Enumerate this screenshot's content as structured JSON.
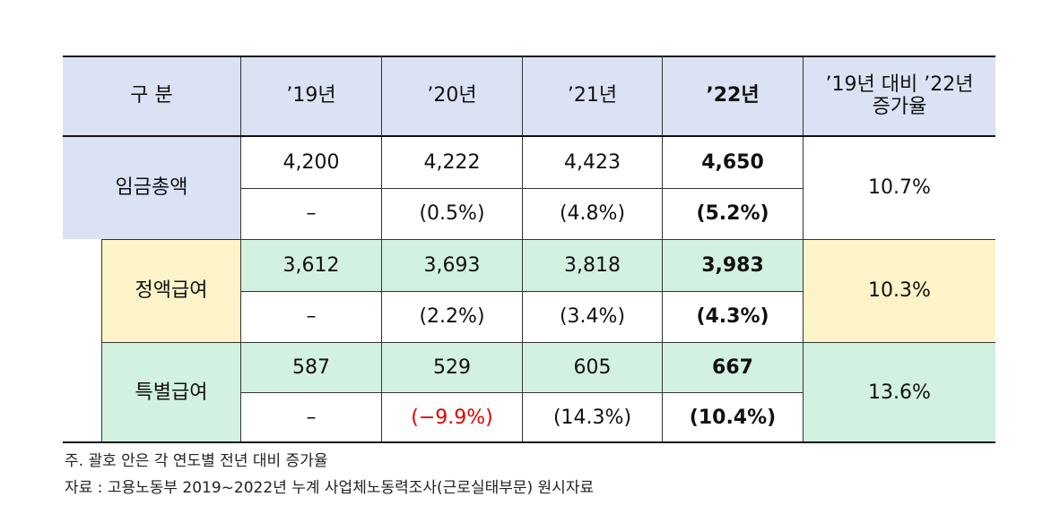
{
  "header": {
    "label": "구 분",
    "years": [
      "’19년",
      "’20년",
      "’21년",
      "’22년"
    ],
    "growth": [
      "’19년 대비 ’22년",
      "증가율"
    ]
  },
  "rows": [
    {
      "label": "임금총액",
      "amounts": [
        "4,200",
        "4,222",
        "4,423",
        "4,650"
      ],
      "rates": [
        "–",
        "(0.5%)",
        "(4.8%)",
        "(5.2%)"
      ],
      "growth": "10.7%"
    },
    {
      "label": "정액급여",
      "amounts": [
        "3,612",
        "3,693",
        "3,818",
        "3,983"
      ],
      "rates": [
        "–",
        "(2.2%)",
        "(3.4%)",
        "(4.3%)"
      ],
      "growth": "10.3%"
    },
    {
      "label": "특별급여",
      "amounts": [
        "587",
        "529",
        "605",
        "667"
      ],
      "rates": [
        "–",
        "(−9.9%)",
        "(14.3%)",
        "(10.4%)"
      ],
      "growth": "13.6%"
    }
  ],
  "notes": [
    "주. 괄호 안은 각 연도별 전년 대비 증가율",
    "자료 : 고용노동부 2019~2022년 누계 사업체노동력조사(근로실태부문) 원시자료"
  ]
}
